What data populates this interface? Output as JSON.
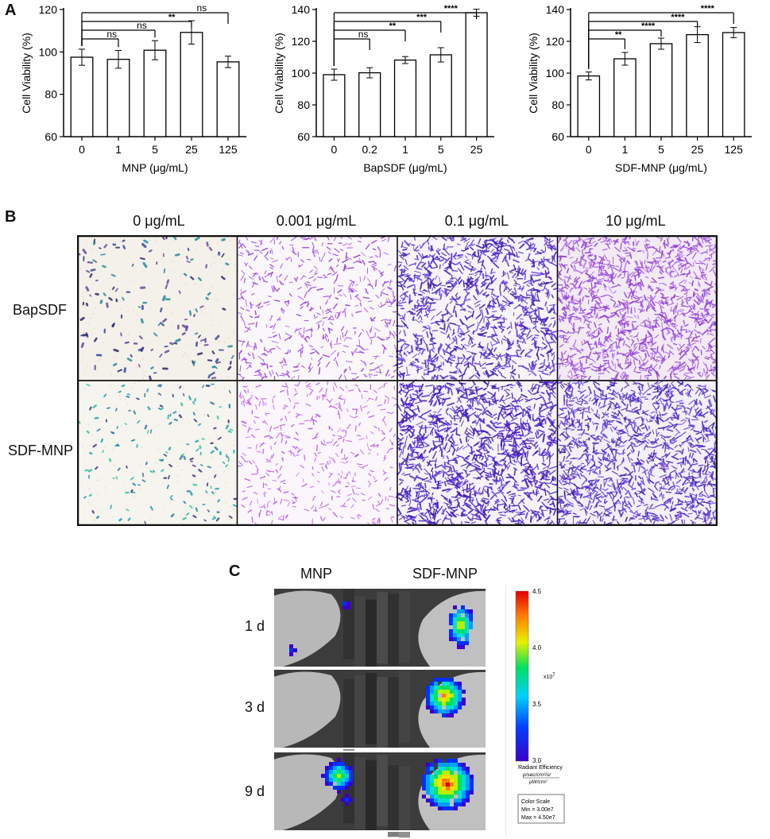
{
  "panels": {
    "a": "A",
    "b": "B",
    "c": "C"
  },
  "chart_data": [
    {
      "type": "bar",
      "title": "",
      "xlabel": "MNP (μg/mL)",
      "ylabel": "Cell Viability (%)",
      "categories": [
        "0",
        "1",
        "5",
        "25",
        "125"
      ],
      "values": [
        97.5,
        96.5,
        100.8,
        109.2,
        95.3
      ],
      "errors": [
        3.8,
        4.2,
        4.5,
        5.5,
        2.7
      ],
      "ylim": [
        60,
        120
      ],
      "yticks": [
        "60",
        "80",
        "100",
        "120"
      ],
      "significance": [
        {
          "from": 0,
          "to": 1,
          "label": "ns"
        },
        {
          "from": 0,
          "to": 2,
          "label": "ns"
        },
        {
          "from": 0,
          "to": 3,
          "label": "**"
        },
        {
          "from": 0,
          "to": 4,
          "label": "ns"
        }
      ]
    },
    {
      "type": "bar",
      "title": "",
      "xlabel": "BapSDF (μg/mL)",
      "ylabel": "Cell Viability (%)",
      "categories": [
        "0",
        "0.2",
        "1",
        "5",
        "25"
      ],
      "values": [
        99,
        100.2,
        108.2,
        111.5,
        138
      ],
      "errors": [
        3.5,
        3.2,
        2.2,
        4.5,
        2.2
      ],
      "ylim": [
        60,
        140
      ],
      "yticks": [
        "60",
        "80",
        "100",
        "120",
        "140"
      ],
      "significance": [
        {
          "from": 0,
          "to": 1,
          "label": "ns"
        },
        {
          "from": 0,
          "to": 2,
          "label": "**"
        },
        {
          "from": 0,
          "to": 3,
          "label": "***"
        },
        {
          "from": 0,
          "to": 4,
          "label": "****"
        }
      ]
    },
    {
      "type": "bar",
      "title": "",
      "xlabel": "SDF-MNP (μg/mL)",
      "ylabel": "Cell Viability (%)",
      "categories": [
        "0",
        "1",
        "5",
        "25",
        "125"
      ],
      "values": [
        98.2,
        109,
        118.5,
        124.2,
        125.5
      ],
      "errors": [
        2.5,
        4,
        3.5,
        5,
        3.2
      ],
      "ylim": [
        60,
        140
      ],
      "yticks": [
        "60",
        "80",
        "100",
        "120",
        "140"
      ],
      "significance": [
        {
          "from": 0,
          "to": 1,
          "label": "**"
        },
        {
          "from": 0,
          "to": 2,
          "label": "****"
        },
        {
          "from": 0,
          "to": 3,
          "label": "****"
        },
        {
          "from": 0,
          "to": 4,
          "label": "****"
        }
      ]
    }
  ],
  "micrographs": {
    "columns": [
      "0 μg/mL",
      "0.001 μg/mL",
      "0.1 μg/mL",
      "10 μg/mL"
    ],
    "rows": [
      "BapSDF",
      "SDF-MNP"
    ]
  },
  "imaging": {
    "columns": [
      "MNP",
      "SDF-MNP"
    ],
    "rows": [
      "1 d",
      "3 d",
      "9 d"
    ],
    "colorbar": {
      "ticks": [
        "4.5",
        "4.0",
        "3.5",
        "3.0"
      ],
      "exponent": "x10",
      "exponent_power": "7",
      "title": "Radiant Efficiency",
      "unit_num": "p/sec/cm²/sr",
      "unit_den": "μW/cm²",
      "scale_title": "Color Scale",
      "scale_min": "Min = 3.00e7",
      "scale_max": "Max = 4.50e7"
    }
  }
}
